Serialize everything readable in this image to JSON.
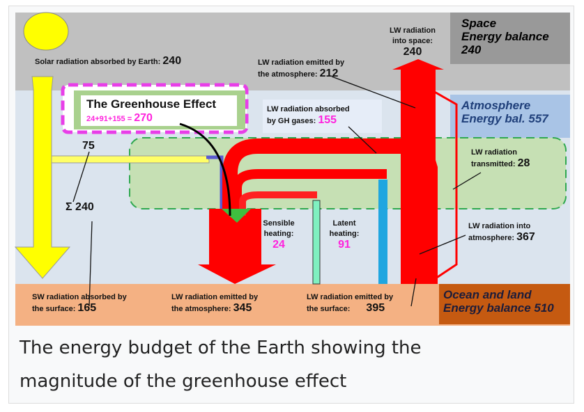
{
  "space": {
    "title": "Space",
    "subtitle": "Energy balance",
    "value": "240"
  },
  "atmosphere": {
    "title": "Atmosphere",
    "subtitle": "Energy bal. 557"
  },
  "surface": {
    "title": "Ocean and land",
    "subtitle": "Energy balance 510"
  },
  "greenhouse": {
    "title": "The Greenhouse Effect",
    "formula": "24+91+155 =",
    "value": "270"
  },
  "labels": {
    "lw_space": {
      "lines": [
        "LW radiation",
        "into space:"
      ],
      "value": "240"
    },
    "solar": {
      "lines": [
        "Solar radiation  absorbed by Earth:"
      ],
      "value": "240"
    },
    "lw_atm_space": {
      "lines": [
        "LW radiation emitted by",
        "the atmosphere:"
      ],
      "value": "212"
    },
    "gh_absorbed": {
      "lines": [
        "LW radiation absorbed",
        "by GH gases:"
      ],
      "value": "155"
    },
    "absorbed_atm": {
      "value": "75"
    },
    "sum": {
      "value": "Σ 240"
    },
    "transmitted": {
      "lines": [
        "LW radiation",
        "transmitted:"
      ],
      "value": "28"
    },
    "sensible": {
      "lines": [
        "Sensible",
        "heating:"
      ],
      "value": "24"
    },
    "latent": {
      "lines": [
        "Latent",
        "heating:"
      ],
      "value": "91"
    },
    "into_atm": {
      "lines": [
        "LW radiation into",
        "atmosphere:"
      ],
      "value": "367"
    },
    "sw_surface": {
      "lines": [
        "SW radiation absorbed by",
        "the surface:"
      ],
      "value": "165"
    },
    "lw_atm_surface": {
      "lines": [
        "LW radiation emitted by",
        "the atmosphere:"
      ],
      "value": "345"
    },
    "lw_surface": {
      "lines": [
        "LW radiation emitted by",
        "the surface:"
      ],
      "value": "395"
    }
  },
  "caption": "The energy budget of the Earth showing the magnitude of the greenhouse effect"
}
